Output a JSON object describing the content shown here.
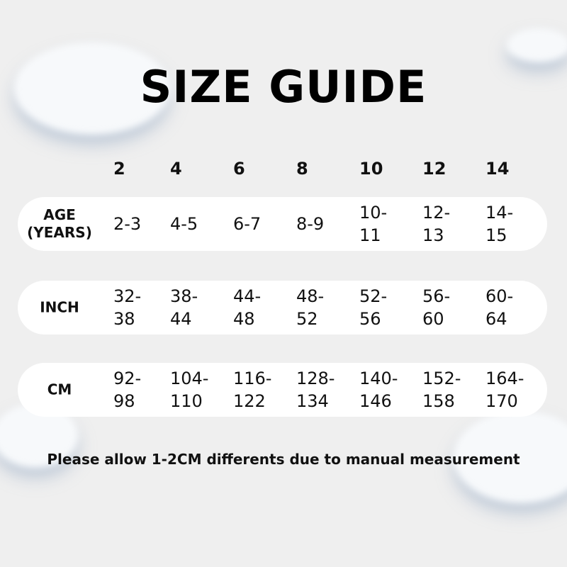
{
  "title": "SIZE GUIDE",
  "sizes": [
    "2",
    "4",
    "6",
    "8",
    "10",
    "12",
    "14"
  ],
  "rows": [
    {
      "label": "AGE (YEARS)",
      "values": [
        "2-3",
        "4-5",
        "6-7",
        "8-9",
        "10-11",
        "12-13",
        "14-15"
      ]
    },
    {
      "label": "INCH",
      "values": [
        "32-38",
        "38-44",
        "44-48",
        "48-52",
        "52-56",
        "56-60",
        "60-64"
      ]
    },
    {
      "label": "CM",
      "values": [
        "92-98",
        "104-110",
        "116-122",
        "128-134",
        "140-146",
        "152-158",
        "164-170"
      ]
    }
  ],
  "note": "Please allow 1-2CM differents due to manual measurement"
}
